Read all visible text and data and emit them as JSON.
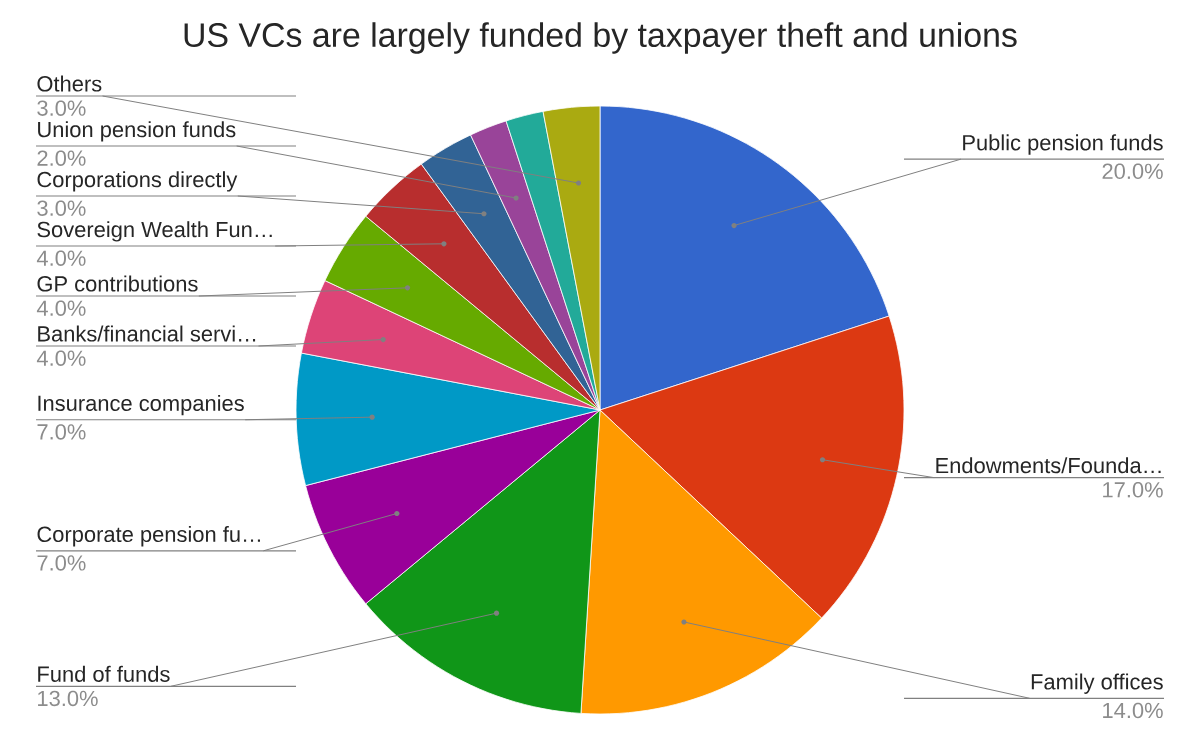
{
  "chart_data": {
    "type": "pie",
    "title": "US VCs are largely funded by taxpayer theft and unions",
    "categories": [
      "Public pension funds",
      "Endowments/Founda…",
      "Family offices",
      "Fund of funds",
      "Corporate pension fu…",
      "Insurance companies",
      "Banks/financial servi…",
      "GP contributions",
      "Sovereign Wealth Fun…",
      "Corporations directly",
      "Union pension funds",
      null,
      "Others"
    ],
    "values": [
      20,
      17,
      14,
      13,
      7,
      7,
      4,
      4,
      4,
      3,
      2,
      2,
      3
    ],
    "value_labels": [
      "20.0%",
      "17.0%",
      "14.0%",
      "13.0%",
      "7.0%",
      "7.0%",
      "4.0%",
      "4.0%",
      "4.0%",
      "3.0%",
      "2.0%",
      null,
      "3.0%"
    ],
    "colors": [
      "#3366cc",
      "#dc3912",
      "#ff9900",
      "#109618",
      "#990099",
      "#0099c6",
      "#dd4477",
      "#66aa00",
      "#b82e2e",
      "#316395",
      "#994499",
      "#22aa99",
      "#aaaa11"
    ],
    "legend": false
  }
}
